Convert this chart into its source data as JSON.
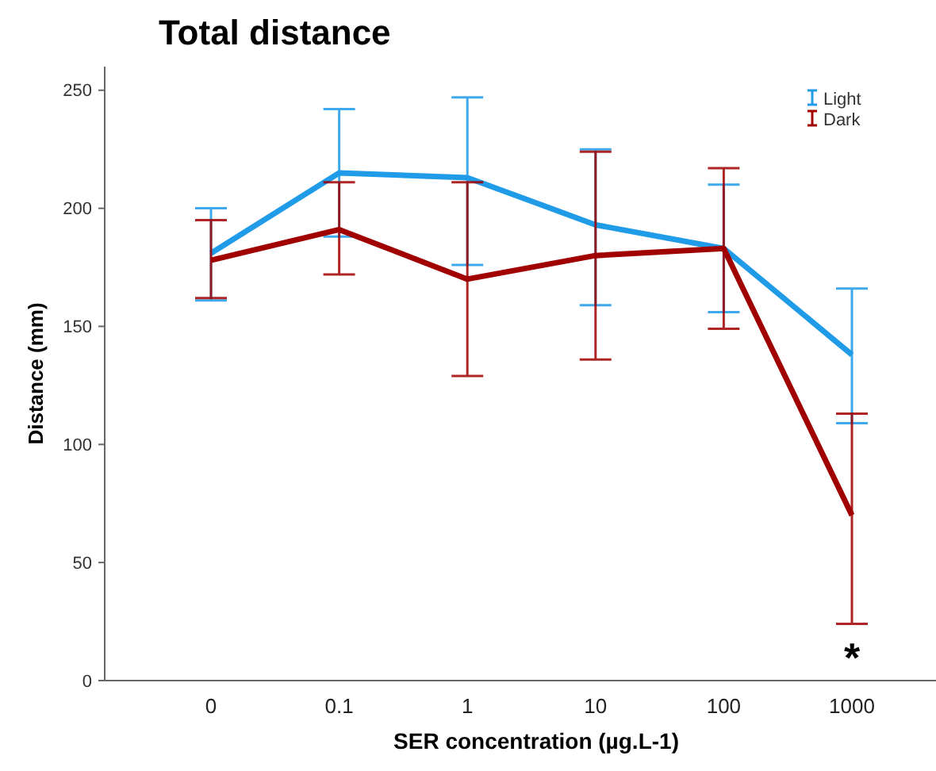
{
  "chart_data": {
    "type": "line",
    "title": "Total distance",
    "xlabel": "SER concentration (µg.L-1)",
    "ylabel": "Distance (mm)",
    "categories": [
      "0",
      "0.1",
      "1",
      "10",
      "100",
      "1000"
    ],
    "series": [
      {
        "name": "Light",
        "color": "#1f9be8",
        "values": [
          181,
          215,
          213,
          193,
          183,
          138
        ],
        "errors": [
          [
            161,
            200
          ],
          [
            188,
            242
          ],
          [
            176,
            247
          ],
          [
            159,
            225
          ],
          [
            156,
            210
          ],
          [
            109,
            166
          ]
        ]
      },
      {
        "name": "Dark",
        "color": "#a00000",
        "values": [
          178,
          191,
          170,
          180,
          183,
          70
        ],
        "errors": [
          [
            162,
            195
          ],
          [
            172,
            211
          ],
          [
            129,
            211
          ],
          [
            136,
            224
          ],
          [
            149,
            217
          ],
          [
            24,
            113
          ]
        ]
      }
    ],
    "annotations": [
      "*"
    ],
    "ylim": [
      0,
      260
    ],
    "yticks": [
      0,
      50,
      100,
      150,
      200,
      250
    ],
    "grid": false,
    "legend": "top right",
    "marker": "none",
    "line_style": "solid"
  }
}
